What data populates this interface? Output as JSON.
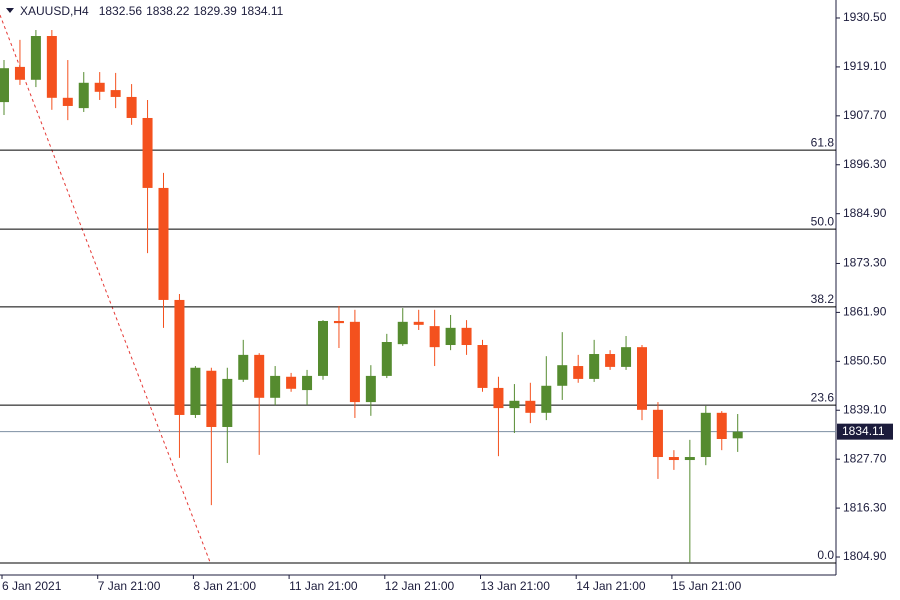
{
  "chart_data": {
    "type": "candlestick",
    "title": "XAUUSD,H4",
    "header_values": [
      1832.56,
      1838.22,
      1829.39,
      1834.11
    ],
    "categories": [
      "6 Jan 2021",
      null,
      null,
      null,
      null,
      null,
      "7 Jan 21:00",
      null,
      null,
      null,
      null,
      null,
      "8 Jan 21:00",
      null,
      null,
      null,
      null,
      null,
      "11 Jan 21:00",
      null,
      null,
      null,
      null,
      null,
      "12 Jan 21:00",
      null,
      null,
      null,
      null,
      null,
      "13 Jan 21:00",
      null,
      null,
      null,
      null,
      null,
      "14 Jan 21:00",
      null,
      null,
      null,
      null,
      null,
      "15 Jan 21:00",
      null,
      null,
      null,
      null
    ],
    "series": [
      {
        "open": [
          1910.9,
          1919.1,
          1916.1,
          1926.3,
          1911.9,
          1909.5,
          1915.4,
          1913.7,
          1912.1,
          1907.2,
          1890.9,
          1864.8,
          1838.0,
          1848.3,
          1835.2,
          1846.2,
          1852.0,
          1842.0,
          1846.9,
          1843.8,
          1847.1,
          1859.9,
          1859.7,
          1841.0,
          1847.1,
          1854.5,
          1859.7,
          1858.7,
          1854.3,
          1858.3,
          1854.3,
          1844.3,
          1839.6,
          1841.3,
          1838.5,
          1844.8,
          1849.4,
          1846.4,
          1852.2,
          1849.2,
          1853.8,
          1839.2,
          1828.2,
          1827.5,
          1828.2,
          1838.5,
          1832.56
        ],
        "high": [
          1920.7,
          1925.4,
          1927.7,
          1927.7,
          1920.7,
          1917.9,
          1917.9,
          1917.7,
          1915.1,
          1911.4,
          1894.4,
          1866.2,
          1849.4,
          1849.0,
          1849.0,
          1855.5,
          1852.4,
          1849.4,
          1847.8,
          1848.5,
          1860.1,
          1863.4,
          1862.5,
          1849.6,
          1856.9,
          1862.9,
          1862.5,
          1862.5,
          1861.3,
          1860.1,
          1855.5,
          1846.9,
          1845.2,
          1845.5,
          1851.7,
          1857.3,
          1852.0,
          1855.5,
          1853.1,
          1856.4,
          1854.3,
          1841.0,
          1829.8,
          1832.2,
          1840.1,
          1838.9,
          1838.22
        ],
        "low": [
          1907.9,
          1914.9,
          1914.4,
          1909.1,
          1906.7,
          1908.6,
          1911.4,
          1909.5,
          1905.6,
          1875.7,
          1858.3,
          1828.0,
          1837.3,
          1817.0,
          1826.8,
          1845.7,
          1828.7,
          1840.3,
          1843.4,
          1840.3,
          1846.2,
          1853.6,
          1837.3,
          1837.8,
          1846.6,
          1854.1,
          1857.8,
          1849.4,
          1853.1,
          1852.0,
          1843.4,
          1828.4,
          1833.8,
          1836.1,
          1836.8,
          1841.5,
          1845.5,
          1845.7,
          1848.5,
          1848.5,
          1836.8,
          1823.1,
          1825.2,
          1803.7,
          1826.3,
          1829.8,
          1829.39
        ],
        "close": [
          1918.8,
          1916.1,
          1926.3,
          1911.9,
          1910.0,
          1915.4,
          1913.3,
          1912.1,
          1907.2,
          1890.9,
          1864.8,
          1838.0,
          1849.0,
          1835.2,
          1846.4,
          1852.0,
          1842.0,
          1847.1,
          1844.1,
          1847.1,
          1859.9,
          1859.4,
          1841.0,
          1847.1,
          1855.0,
          1859.7,
          1859.0,
          1853.8,
          1858.3,
          1854.3,
          1844.3,
          1839.6,
          1841.3,
          1838.5,
          1844.8,
          1849.6,
          1846.4,
          1852.2,
          1849.2,
          1853.8,
          1839.2,
          1828.2,
          1827.5,
          1828.2,
          1838.5,
          1832.4,
          1834.11
        ]
      }
    ],
    "up_color": "#558b2f",
    "down_color": "#f4511e",
    "ylim": [
      1800.71,
      1934.69
    ],
    "yticks": [
      {
        "value": 1930.5,
        "label": "1930.50"
      },
      {
        "value": 1919.1,
        "label": "1919.10"
      },
      {
        "value": 1907.7,
        "label": "1907.70"
      },
      {
        "value": 1896.3,
        "label": "1896.30"
      },
      {
        "value": 1884.9,
        "label": "1884.90"
      },
      {
        "value": 1873.3,
        "label": "1873.30"
      },
      {
        "value": 1861.9,
        "label": "1861.90"
      },
      {
        "value": 1850.5,
        "label": "1850.50"
      },
      {
        "value": 1839.1,
        "label": "1839.10"
      },
      {
        "value": 1827.7,
        "label": "1827.70"
      },
      {
        "value": 1816.3,
        "label": "1816.30"
      },
      {
        "value": 1804.9,
        "label": "1804.90"
      }
    ],
    "fib_levels": [
      {
        "value": 1899.7,
        "label": "61.8"
      },
      {
        "value": 1881.3,
        "label": "50.0"
      },
      {
        "value": 1863.2,
        "label": "38.2"
      },
      {
        "value": 1840.3,
        "label": "23.6"
      },
      {
        "value": 1803.5,
        "label": "0.0"
      }
    ],
    "last_price": {
      "value": 1834.11,
      "label": "1834.11"
    }
  }
}
